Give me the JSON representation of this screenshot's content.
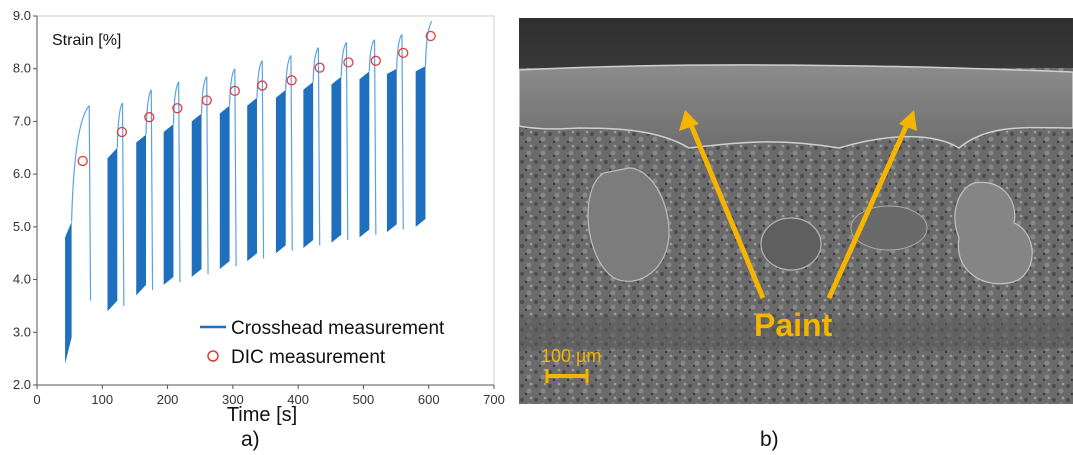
{
  "chart_data": {
    "type": "line",
    "title": "",
    "ylabel_inside": "Strain [%]",
    "xlabel": "Time [s]",
    "xlim": [
      0,
      700
    ],
    "ylim": [
      2.0,
      9.0
    ],
    "xticks": [
      "0",
      "100",
      "200",
      "300",
      "400",
      "500",
      "600",
      "700"
    ],
    "yticks": [
      "2.0",
      "3.0",
      "4.0",
      "5.0",
      "6.0",
      "7.0",
      "8.0",
      "9.0"
    ],
    "grid": false,
    "legend_position": "bottom-right",
    "series": [
      {
        "name": "Crosshead measurement",
        "color": "#1f6fbf",
        "cycles": [
          {
            "t_start": 43,
            "t_end": 53,
            "band_bottom": [
              2.4,
              2.9
            ],
            "band_top": [
              4.8,
              5.1
            ],
            "peak_t": 80,
            "peak": 7.3,
            "min_t": 82,
            "min": 3.6
          },
          {
            "t_start": 108,
            "t_end": 123,
            "band_bottom": [
              3.4,
              3.6
            ],
            "band_top": [
              6.3,
              6.5
            ],
            "peak_t": 131,
            "peak": 7.35,
            "min_t": 133,
            "min": 3.5
          },
          {
            "t_start": 152,
            "t_end": 167,
            "band_bottom": [
              3.7,
              3.9
            ],
            "band_top": [
              6.6,
              6.75
            ],
            "peak_t": 175,
            "peak": 7.6,
            "min_t": 177,
            "min": 3.8
          },
          {
            "t_start": 194,
            "t_end": 209,
            "band_bottom": [
              3.9,
              4.05
            ],
            "band_top": [
              6.8,
              6.95
            ],
            "peak_t": 217,
            "peak": 7.75,
            "min_t": 219,
            "min": 3.95
          },
          {
            "t_start": 237,
            "t_end": 252,
            "band_bottom": [
              4.05,
              4.2
            ],
            "band_top": [
              7.0,
              7.15
            ],
            "peak_t": 260,
            "peak": 7.85,
            "min_t": 262,
            "min": 4.1
          },
          {
            "t_start": 280,
            "t_end": 295,
            "band_bottom": [
              4.2,
              4.35
            ],
            "band_top": [
              7.15,
              7.3
            ],
            "peak_t": 303,
            "peak": 8.0,
            "min_t": 305,
            "min": 4.25
          },
          {
            "t_start": 322,
            "t_end": 337,
            "band_bottom": [
              4.35,
              4.5
            ],
            "band_top": [
              7.3,
              7.45
            ],
            "peak_t": 345,
            "peak": 8.15,
            "min_t": 347,
            "min": 4.4
          },
          {
            "t_start": 366,
            "t_end": 381,
            "band_bottom": [
              4.5,
              4.65
            ],
            "band_top": [
              7.45,
              7.6
            ],
            "peak_t": 389,
            "peak": 8.25,
            "min_t": 391,
            "min": 4.55
          },
          {
            "t_start": 408,
            "t_end": 423,
            "band_bottom": [
              4.6,
              4.75
            ],
            "band_top": [
              7.6,
              7.75
            ],
            "peak_t": 431,
            "peak": 8.4,
            "min_t": 433,
            "min": 4.65
          },
          {
            "t_start": 451,
            "t_end": 466,
            "band_bottom": [
              4.7,
              4.85
            ],
            "band_top": [
              7.7,
              7.85
            ],
            "peak_t": 474,
            "peak": 8.5,
            "min_t": 476,
            "min": 4.75
          },
          {
            "t_start": 494,
            "t_end": 509,
            "band_bottom": [
              4.8,
              4.95
            ],
            "band_top": [
              7.8,
              7.95
            ],
            "peak_t": 517,
            "peak": 8.55,
            "min_t": 519,
            "min": 4.85
          },
          {
            "t_start": 536,
            "t_end": 551,
            "band_bottom": [
              4.9,
              5.05
            ],
            "band_top": [
              7.9,
              8.0
            ],
            "peak_t": 559,
            "peak": 8.65,
            "min_t": 561,
            "min": 4.95
          },
          {
            "t_start": 580,
            "t_end": 595,
            "band_bottom": [
              5.0,
              5.15
            ],
            "band_top": [
              7.95,
              8.05
            ],
            "peak_t": 605,
            "peak": 8.9,
            "min_t": 607,
            "min": 8.9
          }
        ]
      },
      {
        "name": "DIC measurement",
        "color": "#e03c3c",
        "marker": "circle",
        "x": [
          70,
          130,
          172,
          215,
          260,
          303,
          345,
          390,
          433,
          477,
          519,
          561,
          603
        ],
        "y": [
          6.25,
          6.8,
          7.08,
          7.25,
          7.4,
          7.58,
          7.68,
          7.78,
          8.02,
          8.12,
          8.15,
          8.3,
          8.62
        ]
      }
    ]
  },
  "image_b": {
    "label": "Paint",
    "scale_bar": "100 µm",
    "arrow_color": "#f5b400"
  },
  "captions": {
    "a": "a)",
    "b": "b)"
  }
}
